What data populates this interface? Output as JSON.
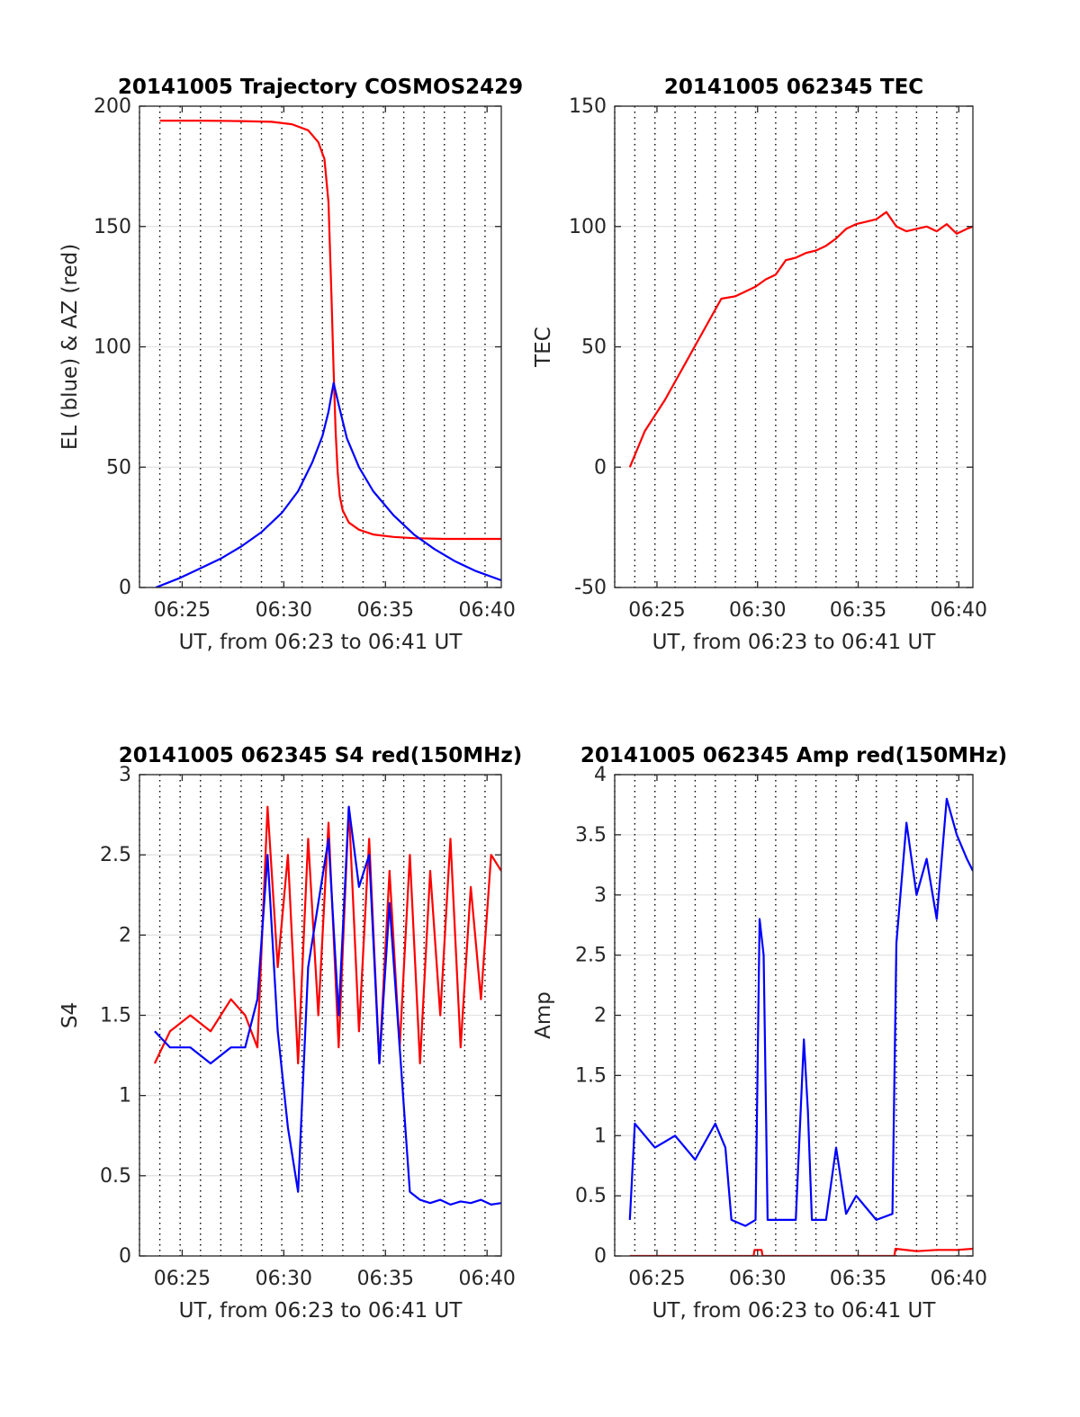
{
  "figure": {
    "colors": {
      "red": "#ff0000",
      "blue": "#0000ff",
      "grid": "#e3e3e3",
      "axis": "#262626"
    },
    "time_window": {
      "start": "06:23",
      "end": "06:41",
      "xlim_minutes": [
        6.0,
        23.8
      ]
    }
  },
  "chart_data": [
    {
      "id": "trajectory",
      "type": "line",
      "title": "20141005 Trajectory COSMOS2429",
      "xlabel": "UT, from 06:23 to 06:41 UT",
      "ylabel": "EL (blue) & AZ (red)",
      "xlim": [
        6.0,
        23.8
      ],
      "ylim": [
        0,
        200
      ],
      "xticks": [
        {
          "value": 8.1,
          "label": "06:25"
        },
        {
          "value": 13.1,
          "label": "06:30"
        },
        {
          "value": 18.1,
          "label": "06:35"
        },
        {
          "value": 23.1,
          "label": "06:40"
        }
      ],
      "yticks": [
        0,
        50,
        100,
        150,
        200
      ],
      "grid": "major-dotted-x",
      "series": [
        {
          "color": "red",
          "x": [
            7.0,
            9.0,
            11.0,
            12.5,
            13.5,
            14.3,
            14.8,
            15.1,
            15.3,
            15.45,
            15.55,
            15.65,
            15.75,
            15.85,
            16.0,
            16.3,
            16.8,
            17.5,
            18.5,
            19.5,
            21.0,
            23.8
          ],
          "y": [
            194,
            194,
            193.8,
            193.5,
            192.5,
            190,
            185,
            178,
            160,
            120,
            90,
            65,
            48,
            38,
            32,
            27,
            24,
            22,
            21,
            20.5,
            20.2,
            20.2
          ]
        },
        {
          "color": "blue",
          "x": [
            6.8,
            8.0,
            9.0,
            10.0,
            11.0,
            12.0,
            13.0,
            13.8,
            14.5,
            15.0,
            15.3,
            15.55,
            15.8,
            16.2,
            16.8,
            17.5,
            18.5,
            19.5,
            20.5,
            21.5,
            22.5,
            23.8
          ],
          "y": [
            0,
            4,
            8,
            12,
            17,
            23,
            31,
            40,
            52,
            63,
            73,
            85,
            76,
            62,
            50,
            40,
            30,
            22,
            16,
            11,
            7,
            3
          ]
        }
      ]
    },
    {
      "id": "tec",
      "type": "line",
      "title": "20141005 062345 TEC",
      "xlabel": "UT, from 06:23 to 06:41 UT",
      "ylabel": "TEC",
      "xlim": [
        6.0,
        23.8
      ],
      "ylim": [
        -50,
        150
      ],
      "xticks": [
        {
          "value": 8.1,
          "label": "06:25"
        },
        {
          "value": 13.1,
          "label": "06:30"
        },
        {
          "value": 18.1,
          "label": "06:35"
        },
        {
          "value": 23.1,
          "label": "06:40"
        }
      ],
      "yticks": [
        -50,
        0,
        50,
        100,
        150
      ],
      "grid": "major-dotted-x",
      "series": [
        {
          "color": "red",
          "x": [
            6.75,
            7.5,
            8.5,
            9.5,
            10.5,
            11.3,
            12.0,
            12.5,
            13.0,
            13.5,
            14.0,
            14.5,
            15.0,
            15.5,
            16.0,
            16.5,
            17.0,
            17.5,
            18.0,
            18.5,
            19.0,
            19.5,
            20.0,
            20.5,
            21.0,
            21.5,
            22.0,
            22.5,
            23.0,
            23.5,
            23.8
          ],
          "y": [
            0,
            15,
            28,
            43,
            58,
            70,
            71,
            73,
            75,
            78,
            80,
            86,
            87,
            89,
            90,
            92,
            95,
            99,
            101,
            102,
            103,
            106,
            100,
            98,
            99,
            100,
            98,
            101,
            97,
            99,
            100
          ]
        }
      ]
    },
    {
      "id": "s4",
      "type": "line",
      "title": "20141005 062345 S4 red(150MHz)",
      "xlabel": "UT, from 06:23 to 06:41 UT",
      "ylabel": "S4",
      "xlim": [
        6.0,
        23.8
      ],
      "ylim": [
        0,
        3
      ],
      "xticks": [
        {
          "value": 8.1,
          "label": "06:25"
        },
        {
          "value": 13.1,
          "label": "06:30"
        },
        {
          "value": 18.1,
          "label": "06:35"
        },
        {
          "value": 23.1,
          "label": "06:40"
        }
      ],
      "yticks": [
        0,
        0.5,
        1,
        1.5,
        2,
        2.5,
        3
      ],
      "ytick_labels": [
        "0",
        "0.5",
        "1",
        "1.5",
        "2",
        "2.5",
        "3"
      ],
      "grid": "major-dotted-x",
      "series": [
        {
          "color": "red",
          "x": [
            6.75,
            7.5,
            8.5,
            9.5,
            10.5,
            11.2,
            11.8,
            12.3,
            12.8,
            13.3,
            13.8,
            14.3,
            14.8,
            15.3,
            15.8,
            16.3,
            16.8,
            17.3,
            17.8,
            18.3,
            18.8,
            19.3,
            19.8,
            20.3,
            20.8,
            21.3,
            21.8,
            22.3,
            22.8,
            23.3,
            23.8
          ],
          "y": [
            1.2,
            1.4,
            1.5,
            1.4,
            1.6,
            1.5,
            1.3,
            2.8,
            1.8,
            2.5,
            1.2,
            2.6,
            1.5,
            2.7,
            1.3,
            2.8,
            1.4,
            2.6,
            1.2,
            2.4,
            1.3,
            2.5,
            1.2,
            2.4,
            1.5,
            2.6,
            1.3,
            2.3,
            1.6,
            2.5,
            2.4
          ]
        },
        {
          "color": "blue",
          "x": [
            6.75,
            7.5,
            8.5,
            9.5,
            10.5,
            11.2,
            11.8,
            12.3,
            12.8,
            13.3,
            13.8,
            14.3,
            14.8,
            15.3,
            15.8,
            16.3,
            16.8,
            17.3,
            17.8,
            18.3,
            18.8,
            19.3,
            19.8,
            20.3,
            20.8,
            21.3,
            21.8,
            22.3,
            22.8,
            23.3,
            23.8
          ],
          "y": [
            1.4,
            1.3,
            1.3,
            1.2,
            1.3,
            1.3,
            1.6,
            2.5,
            1.4,
            0.8,
            0.4,
            1.8,
            2.2,
            2.6,
            1.5,
            2.8,
            2.3,
            2.5,
            1.2,
            2.2,
            1.3,
            0.4,
            0.35,
            0.33,
            0.35,
            0.32,
            0.34,
            0.33,
            0.35,
            0.32,
            0.33
          ]
        }
      ]
    },
    {
      "id": "amp",
      "type": "line",
      "title": "20141005 062345 Amp red(150MHz)",
      "xlabel": "UT, from 06:23 to 06:41 UT",
      "ylabel": "Amp",
      "xlim": [
        6.0,
        23.8
      ],
      "ylim": [
        0,
        4
      ],
      "xticks": [
        {
          "value": 8.1,
          "label": "06:25"
        },
        {
          "value": 13.1,
          "label": "06:30"
        },
        {
          "value": 18.1,
          "label": "06:35"
        },
        {
          "value": 23.1,
          "label": "06:40"
        }
      ],
      "yticks": [
        0,
        0.5,
        1,
        1.5,
        2,
        2.5,
        3,
        3.5,
        4
      ],
      "ytick_labels": [
        "0",
        "0.5",
        "1",
        "1.5",
        "2",
        "2.5",
        "3",
        "3.5",
        "4"
      ],
      "grid": "major-dotted-x",
      "series": [
        {
          "color": "red",
          "x": [
            6.75,
            12.9,
            12.95,
            13.3,
            13.35,
            19.9,
            19.95,
            21.0,
            22.0,
            23.0,
            23.8
          ],
          "y": [
            0,
            0,
            0.05,
            0.05,
            0,
            0,
            0.06,
            0.04,
            0.05,
            0.05,
            0.06
          ]
        },
        {
          "color": "blue",
          "x": [
            6.75,
            7.0,
            8.0,
            9.0,
            10.0,
            11.0,
            11.5,
            11.8,
            12.5,
            13.0,
            13.2,
            13.4,
            13.6,
            14.0,
            15.0,
            15.4,
            15.6,
            15.8,
            16.5,
            17.0,
            17.5,
            18.0,
            18.5,
            19.0,
            19.8,
            20.0,
            20.5,
            21.0,
            21.5,
            22.0,
            22.5,
            23.0,
            23.5,
            23.8
          ],
          "y": [
            0.3,
            1.1,
            0.9,
            1.0,
            0.8,
            1.1,
            0.9,
            0.3,
            0.25,
            0.3,
            2.8,
            2.5,
            0.3,
            0.3,
            0.3,
            1.8,
            1.2,
            0.3,
            0.3,
            0.9,
            0.35,
            0.5,
            0.4,
            0.3,
            0.35,
            2.6,
            3.6,
            3.0,
            3.3,
            2.8,
            3.8,
            3.5,
            3.3,
            3.2
          ]
        }
      ]
    }
  ]
}
